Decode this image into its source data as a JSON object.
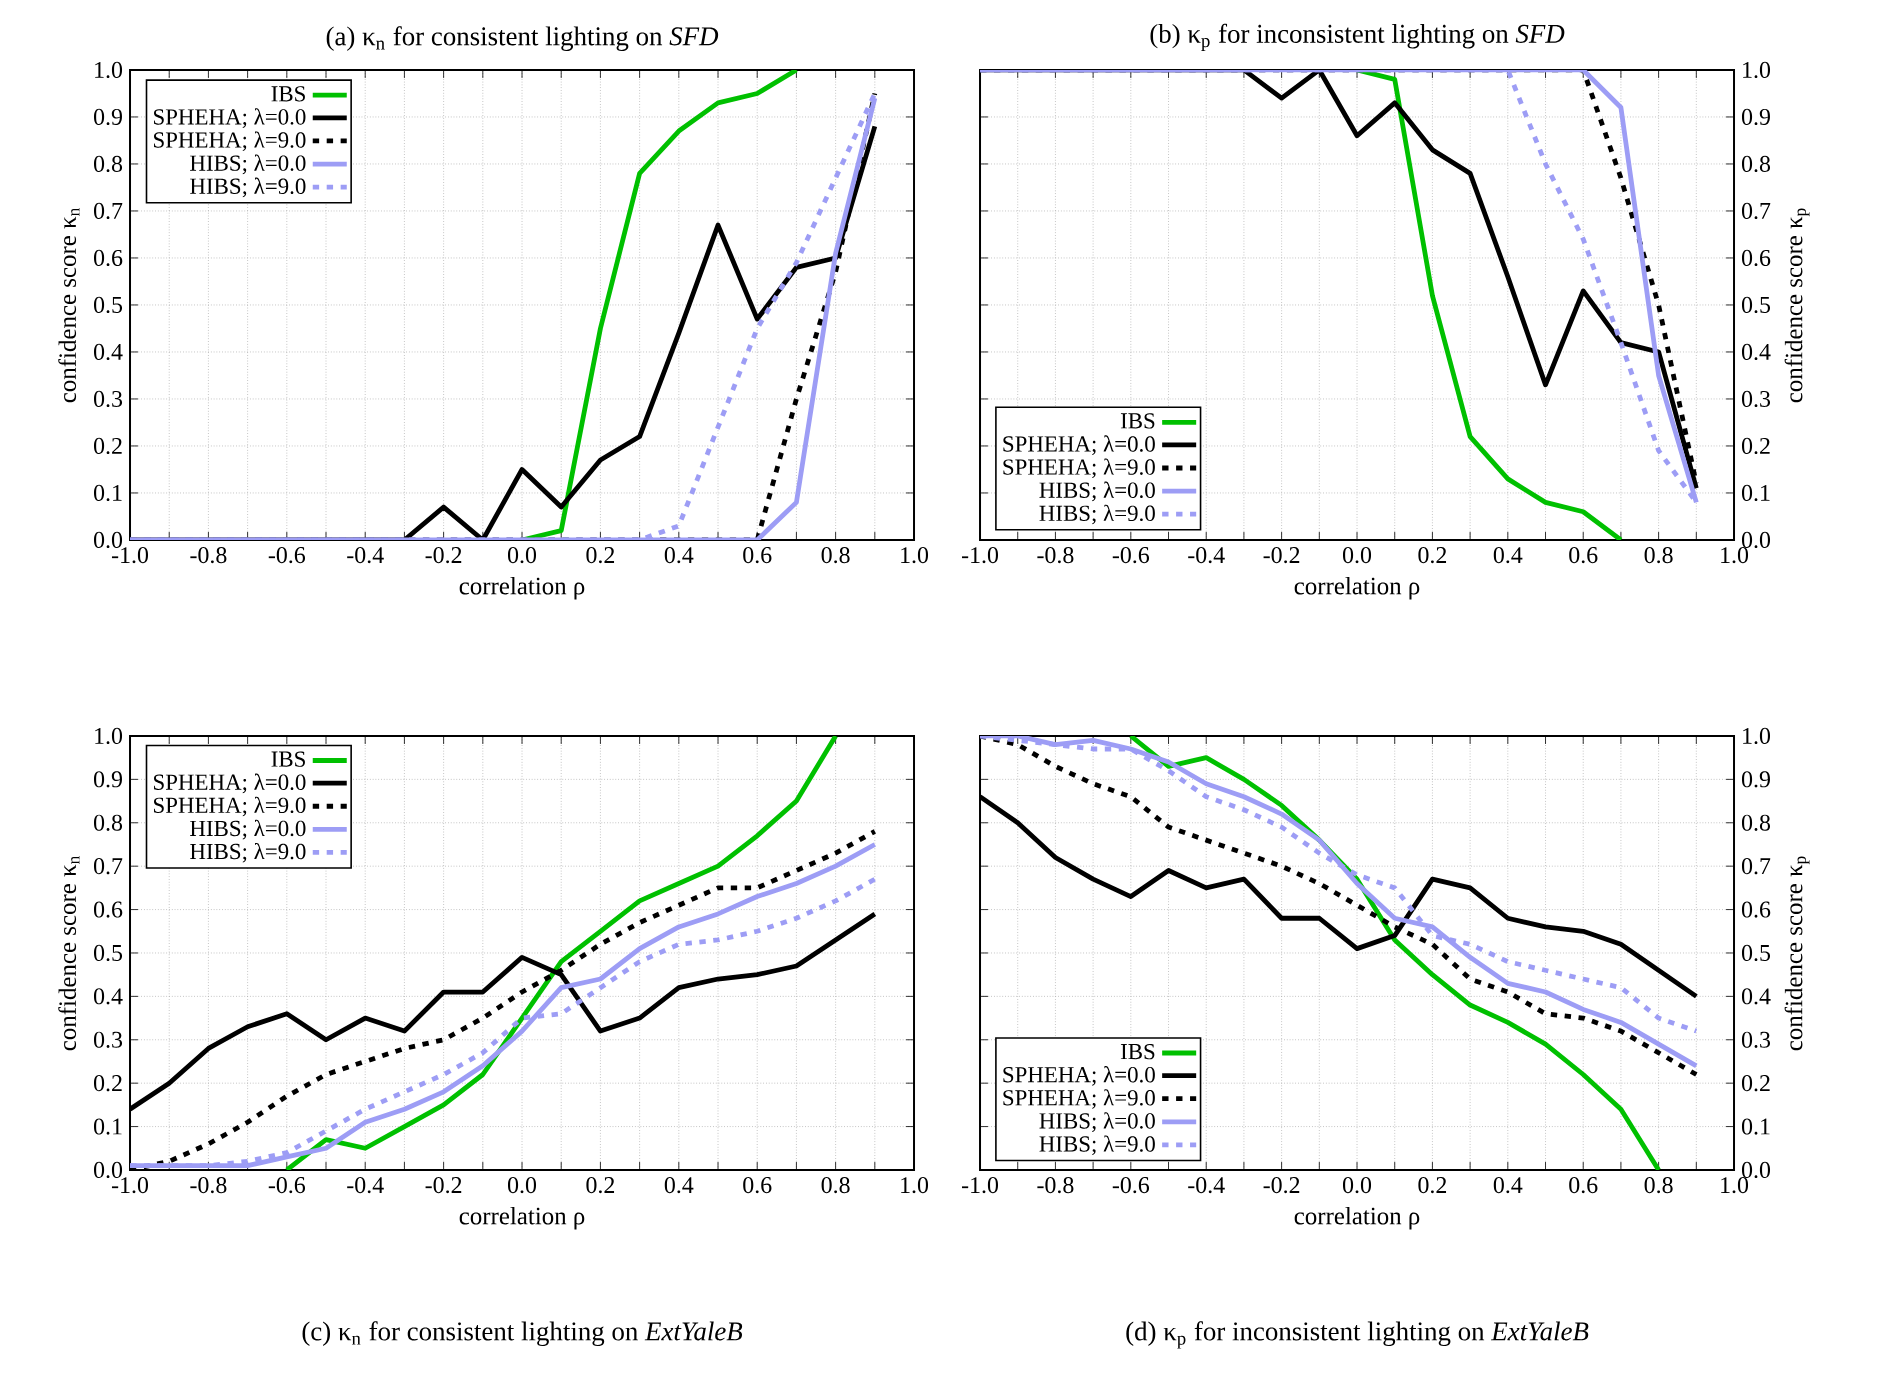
{
  "chart_data": [
    {
      "type": "line",
      "title": "(a) κ$_{n}$ for consistent lighting on *SFD*",
      "xlabel": "correlation ρ",
      "ylabel": "confidence score κ$_{n}$",
      "grid": true,
      "legend": "top left",
      "x": [
        -1.0,
        -0.9,
        -0.8,
        -0.7,
        -0.6,
        -0.5,
        -0.4,
        -0.3,
        -0.2,
        -0.1,
        0.0,
        0.1,
        0.2,
        0.3,
        0.4,
        0.5,
        0.6,
        0.7,
        0.8,
        0.9
      ],
      "xlim": [
        -1.0,
        1.0
      ],
      "ylim": [
        0.0,
        1.0
      ],
      "xticks": [
        {
          "value": -1.0,
          "label": "-1.0"
        },
        {
          "value": -0.9,
          "label": null
        },
        {
          "value": -0.8,
          "label": "-0.8"
        },
        {
          "value": -0.7,
          "label": null
        },
        {
          "value": -0.6,
          "label": "-0.6"
        },
        {
          "value": -0.5,
          "label": null
        },
        {
          "value": -0.4,
          "label": "-0.4"
        },
        {
          "value": -0.3,
          "label": null
        },
        {
          "value": -0.2,
          "label": "-0.2"
        },
        {
          "value": -0.1,
          "label": null
        },
        {
          "value": 0.0,
          "label": "0.0"
        },
        {
          "value": 0.1,
          "label": null
        },
        {
          "value": 0.2,
          "label": "0.2"
        },
        {
          "value": 0.3,
          "label": null
        },
        {
          "value": 0.4,
          "label": "0.4"
        },
        {
          "value": 0.5,
          "label": null
        },
        {
          "value": 0.6,
          "label": "0.6"
        },
        {
          "value": 0.7,
          "label": null
        },
        {
          "value": 0.8,
          "label": "0.8"
        },
        {
          "value": 0.9,
          "label": null
        },
        {
          "value": 1.0,
          "label": "1.0"
        }
      ],
      "yticks": [
        {
          "value": 0.0,
          "label": "0.0"
        },
        {
          "value": 0.1,
          "label": "0.1"
        },
        {
          "value": 0.2,
          "label": "0.2"
        },
        {
          "value": 0.3,
          "label": "0.3"
        },
        {
          "value": 0.4,
          "label": "0.4"
        },
        {
          "value": 0.5,
          "label": "0.5"
        },
        {
          "value": 0.6,
          "label": "0.6"
        },
        {
          "value": 0.7,
          "label": "0.7"
        },
        {
          "value": 0.8,
          "label": "0.8"
        },
        {
          "value": 0.9,
          "label": "0.9"
        },
        {
          "value": 1.0,
          "label": "1.0"
        }
      ],
      "series": [
        {
          "name": "IBS",
          "color": "#00c000",
          "line_style": "solid",
          "values": [
            null,
            null,
            null,
            null,
            null,
            null,
            null,
            null,
            null,
            null,
            0,
            0.02,
            0.45,
            0.78,
            0.87,
            0.93,
            0.95,
            1.0,
            null,
            null
          ]
        },
        {
          "name": "SPHEHA; λ=0.0",
          "color": "#000000",
          "line_style": "solid",
          "values": [
            0,
            0,
            0,
            0,
            0,
            0,
            0,
            0,
            0.07,
            0,
            0.15,
            0.07,
            0.17,
            0.22,
            0.44,
            0.67,
            0.47,
            0.58,
            0.6,
            0.88
          ]
        },
        {
          "name": "SPHEHA; λ=9.0",
          "color": "#000000",
          "line_style": "dotted",
          "values": [
            0,
            0,
            0,
            0,
            0,
            0,
            0,
            0,
            0,
            0,
            0,
            0,
            0,
            0,
            0,
            0,
            0,
            0.3,
            0.57,
            0.95
          ]
        },
        {
          "name": "HIBS; λ=0.0",
          "color": "#9d9df5",
          "line_style": "solid",
          "values": [
            0,
            0,
            0,
            0,
            0,
            0,
            0,
            0,
            0,
            0,
            0,
            0,
            0,
            0,
            0,
            0,
            0,
            0.08,
            0.61,
            0.94
          ]
        },
        {
          "name": "HIBS; λ=9.0",
          "color": "#9d9df5",
          "line_style": "dotted",
          "values": [
            0,
            0,
            0,
            0,
            0,
            0,
            0,
            0,
            0,
            0,
            0,
            0,
            0,
            0,
            0.03,
            0.24,
            0.45,
            0.59,
            0.77,
            0.95
          ]
        }
      ]
    },
    {
      "type": "line",
      "title": "(b) κ$_{p}$ for inconsistent lighting on *SFD*",
      "xlabel": "correlation ρ",
      "ylabel": "confidence score κ$_{p}$",
      "grid": true,
      "legend": "bottom left",
      "x": [
        -1.0,
        -0.9,
        -0.8,
        -0.7,
        -0.6,
        -0.5,
        -0.4,
        -0.3,
        -0.2,
        -0.1,
        0.0,
        0.1,
        0.2,
        0.3,
        0.4,
        0.5,
        0.6,
        0.7,
        0.8,
        0.9
      ],
      "xlim": [
        -1.0,
        1.0
      ],
      "ylim": [
        0.0,
        1.0
      ],
      "xticks": [
        {
          "value": -1.0,
          "label": "-1.0"
        },
        {
          "value": -0.9,
          "label": null
        },
        {
          "value": -0.8,
          "label": "-0.8"
        },
        {
          "value": -0.7,
          "label": null
        },
        {
          "value": -0.6,
          "label": "-0.6"
        },
        {
          "value": -0.5,
          "label": null
        },
        {
          "value": -0.4,
          "label": "-0.4"
        },
        {
          "value": -0.3,
          "label": null
        },
        {
          "value": -0.2,
          "label": "-0.2"
        },
        {
          "value": -0.1,
          "label": null
        },
        {
          "value": 0.0,
          "label": "0.0"
        },
        {
          "value": 0.1,
          "label": null
        },
        {
          "value": 0.2,
          "label": "0.2"
        },
        {
          "value": 0.3,
          "label": null
        },
        {
          "value": 0.4,
          "label": "0.4"
        },
        {
          "value": 0.5,
          "label": null
        },
        {
          "value": 0.6,
          "label": "0.6"
        },
        {
          "value": 0.7,
          "label": null
        },
        {
          "value": 0.8,
          "label": "0.8"
        },
        {
          "value": 0.9,
          "label": null
        },
        {
          "value": 1.0,
          "label": "1.0"
        }
      ],
      "yticks": [
        {
          "value": 0.0,
          "label": "0.0"
        },
        {
          "value": 0.1,
          "label": "0.1"
        },
        {
          "value": 0.2,
          "label": "0.2"
        },
        {
          "value": 0.3,
          "label": "0.3"
        },
        {
          "value": 0.4,
          "label": "0.4"
        },
        {
          "value": 0.5,
          "label": "0.5"
        },
        {
          "value": 0.6,
          "label": "0.6"
        },
        {
          "value": 0.7,
          "label": "0.7"
        },
        {
          "value": 0.8,
          "label": "0.8"
        },
        {
          "value": 0.9,
          "label": "0.9"
        },
        {
          "value": 1.0,
          "label": "1.0"
        }
      ],
      "series": [
        {
          "name": "IBS",
          "color": "#00c000",
          "line_style": "solid",
          "values": [
            null,
            null,
            null,
            null,
            null,
            null,
            null,
            null,
            null,
            null,
            1,
            0.98,
            0.52,
            0.22,
            0.13,
            0.08,
            0.06,
            0,
            null,
            null
          ]
        },
        {
          "name": "SPHEHA; λ=0.0",
          "color": "#000000",
          "line_style": "solid",
          "values": [
            1,
            1,
            1,
            1,
            1,
            1,
            1,
            1,
            0.94,
            1,
            0.86,
            0.93,
            0.83,
            0.78,
            0.56,
            0.33,
            0.53,
            0.42,
            0.4,
            0.11
          ]
        },
        {
          "name": "SPHEHA; λ=9.0",
          "color": "#000000",
          "line_style": "dotted",
          "values": [
            1,
            1,
            1,
            1,
            1,
            1,
            1,
            1,
            1,
            1,
            1,
            1,
            1,
            1,
            1,
            1,
            1,
            0.77,
            0.5,
            0.12
          ]
        },
        {
          "name": "HIBS; λ=0.0",
          "color": "#9d9df5",
          "line_style": "solid",
          "values": [
            1,
            1,
            1,
            1,
            1,
            1,
            1,
            1,
            1,
            1,
            1,
            1,
            1,
            1,
            1,
            1,
            1,
            0.92,
            0.35,
            0.08
          ]
        },
        {
          "name": "HIBS; λ=9.0",
          "color": "#9d9df5",
          "line_style": "dotted",
          "values": [
            1,
            1,
            1,
            1,
            1,
            1,
            1,
            1,
            1,
            1,
            1,
            1,
            1,
            1,
            1,
            0.8,
            0.64,
            0.42,
            0.19,
            0.08
          ]
        }
      ]
    },
    {
      "type": "line",
      "title": "(c) κ$_{n}$ for consistent lighting on *ExtYaleB*",
      "xlabel": "correlation ρ",
      "ylabel": "confidence score κ$_{n}$",
      "grid": true,
      "legend": "top left",
      "x": [
        -1.0,
        -0.9,
        -0.8,
        -0.7,
        -0.6,
        -0.5,
        -0.4,
        -0.3,
        -0.2,
        -0.1,
        0.0,
        0.1,
        0.2,
        0.3,
        0.4,
        0.5,
        0.6,
        0.7,
        0.8,
        0.9
      ],
      "xlim": [
        -1.0,
        1.0
      ],
      "ylim": [
        0.0,
        1.0
      ],
      "xticks": [
        {
          "value": -1.0,
          "label": "-1.0"
        },
        {
          "value": -0.9,
          "label": null
        },
        {
          "value": -0.8,
          "label": "-0.8"
        },
        {
          "value": -0.7,
          "label": null
        },
        {
          "value": -0.6,
          "label": "-0.6"
        },
        {
          "value": -0.5,
          "label": null
        },
        {
          "value": -0.4,
          "label": "-0.4"
        },
        {
          "value": -0.3,
          "label": null
        },
        {
          "value": -0.2,
          "label": "-0.2"
        },
        {
          "value": -0.1,
          "label": null
        },
        {
          "value": 0.0,
          "label": "0.0"
        },
        {
          "value": 0.1,
          "label": null
        },
        {
          "value": 0.2,
          "label": "0.2"
        },
        {
          "value": 0.3,
          "label": null
        },
        {
          "value": 0.4,
          "label": "0.4"
        },
        {
          "value": 0.5,
          "label": null
        },
        {
          "value": 0.6,
          "label": "0.6"
        },
        {
          "value": 0.7,
          "label": null
        },
        {
          "value": 0.8,
          "label": "0.8"
        },
        {
          "value": 0.9,
          "label": null
        },
        {
          "value": 1.0,
          "label": "1.0"
        }
      ],
      "yticks": [
        {
          "value": 0.0,
          "label": "0.0"
        },
        {
          "value": 0.1,
          "label": "0.1"
        },
        {
          "value": 0.2,
          "label": "0.2"
        },
        {
          "value": 0.3,
          "label": "0.3"
        },
        {
          "value": 0.4,
          "label": "0.4"
        },
        {
          "value": 0.5,
          "label": "0.5"
        },
        {
          "value": 0.6,
          "label": "0.6"
        },
        {
          "value": 0.7,
          "label": "0.7"
        },
        {
          "value": 0.8,
          "label": "0.8"
        },
        {
          "value": 0.9,
          "label": "0.9"
        },
        {
          "value": 1.0,
          "label": "1.0"
        }
      ],
      "series": [
        {
          "name": "IBS",
          "color": "#00c000",
          "line_style": "solid",
          "values": [
            null,
            null,
            null,
            null,
            0,
            0.07,
            0.05,
            0.1,
            0.15,
            0.22,
            0.35,
            0.48,
            0.55,
            0.62,
            0.66,
            0.7,
            0.77,
            0.85,
            1.0,
            null
          ]
        },
        {
          "name": "SPHEHA; λ=0.0",
          "color": "#000000",
          "line_style": "solid",
          "values": [
            0.14,
            0.2,
            0.28,
            0.33,
            0.36,
            0.3,
            0.35,
            0.32,
            0.41,
            0.41,
            0.49,
            0.45,
            0.32,
            0.35,
            0.42,
            0.44,
            0.45,
            0.47,
            0.53,
            0.59
          ]
        },
        {
          "name": "SPHEHA; λ=9.0",
          "color": "#000000",
          "line_style": "dotted",
          "values": [
            0,
            0.02,
            0.06,
            0.11,
            0.17,
            0.22,
            0.25,
            0.28,
            0.3,
            0.35,
            0.41,
            0.46,
            0.52,
            0.57,
            0.61,
            0.65,
            0.65,
            0.69,
            0.73,
            0.78
          ]
        },
        {
          "name": "HIBS; λ=0.0",
          "color": "#9d9df5",
          "line_style": "solid",
          "values": [
            0.01,
            0.01,
            0.01,
            0.01,
            0.03,
            0.05,
            0.11,
            0.14,
            0.18,
            0.24,
            0.32,
            0.42,
            0.44,
            0.51,
            0.56,
            0.59,
            0.63,
            0.66,
            0.7,
            0.75
          ]
        },
        {
          "name": "HIBS; λ=9.0",
          "color": "#9d9df5",
          "line_style": "dotted",
          "values": [
            0.01,
            0.01,
            0.01,
            0.02,
            0.04,
            0.09,
            0.14,
            0.18,
            0.22,
            0.27,
            0.35,
            0.36,
            0.42,
            0.48,
            0.52,
            0.53,
            0.55,
            0.58,
            0.62,
            0.67
          ]
        }
      ]
    },
    {
      "type": "line",
      "title": "(d) κ$_{p}$ for inconsistent lighting on *ExtYaleB*",
      "xlabel": "correlation ρ",
      "ylabel": "confidence score κ$_{p}$",
      "grid": true,
      "legend": "bottom left",
      "x": [
        -1.0,
        -0.9,
        -0.8,
        -0.7,
        -0.6,
        -0.5,
        -0.4,
        -0.3,
        -0.2,
        -0.1,
        0.0,
        0.1,
        0.2,
        0.3,
        0.4,
        0.5,
        0.6,
        0.7,
        0.8,
        0.9
      ],
      "xlim": [
        -1.0,
        1.0
      ],
      "ylim": [
        0.0,
        1.0
      ],
      "xticks": [
        {
          "value": -1.0,
          "label": "-1.0"
        },
        {
          "value": -0.9,
          "label": null
        },
        {
          "value": -0.8,
          "label": "-0.8"
        },
        {
          "value": -0.7,
          "label": null
        },
        {
          "value": -0.6,
          "label": "-0.6"
        },
        {
          "value": -0.5,
          "label": null
        },
        {
          "value": -0.4,
          "label": "-0.4"
        },
        {
          "value": -0.3,
          "label": null
        },
        {
          "value": -0.2,
          "label": "-0.2"
        },
        {
          "value": -0.1,
          "label": null
        },
        {
          "value": 0.0,
          "label": "0.0"
        },
        {
          "value": 0.1,
          "label": null
        },
        {
          "value": 0.2,
          "label": "0.2"
        },
        {
          "value": 0.3,
          "label": null
        },
        {
          "value": 0.4,
          "label": "0.4"
        },
        {
          "value": 0.5,
          "label": null
        },
        {
          "value": 0.6,
          "label": "0.6"
        },
        {
          "value": 0.7,
          "label": null
        },
        {
          "value": 0.8,
          "label": "0.8"
        },
        {
          "value": 0.9,
          "label": null
        },
        {
          "value": 1.0,
          "label": "1.0"
        }
      ],
      "yticks": [
        {
          "value": 0.0,
          "label": "0.0"
        },
        {
          "value": 0.1,
          "label": "0.1"
        },
        {
          "value": 0.2,
          "label": "0.2"
        },
        {
          "value": 0.3,
          "label": "0.3"
        },
        {
          "value": 0.4,
          "label": "0.4"
        },
        {
          "value": 0.5,
          "label": "0.5"
        },
        {
          "value": 0.6,
          "label": "0.6"
        },
        {
          "value": 0.7,
          "label": "0.7"
        },
        {
          "value": 0.8,
          "label": "0.8"
        },
        {
          "value": 0.9,
          "label": "0.9"
        },
        {
          "value": 1.0,
          "label": "1.0"
        }
      ],
      "series": [
        {
          "name": "IBS",
          "color": "#00c000",
          "line_style": "solid",
          "values": [
            null,
            null,
            null,
            null,
            1.0,
            0.93,
            0.95,
            0.9,
            0.84,
            0.76,
            0.67,
            0.53,
            0.45,
            0.38,
            0.34,
            0.29,
            0.22,
            0.14,
            0.0,
            null
          ]
        },
        {
          "name": "SPHEHA; λ=0.0",
          "color": "#000000",
          "line_style": "solid",
          "values": [
            0.86,
            0.8,
            0.72,
            0.67,
            0.63,
            0.69,
            0.65,
            0.67,
            0.58,
            0.58,
            0.51,
            0.54,
            0.67,
            0.65,
            0.58,
            0.56,
            0.55,
            0.52,
            0.46,
            0.4
          ]
        },
        {
          "name": "SPHEHA; λ=9.0",
          "color": "#000000",
          "line_style": "dotted",
          "values": [
            1.0,
            0.98,
            0.93,
            0.89,
            0.86,
            0.79,
            0.76,
            0.73,
            0.7,
            0.66,
            0.61,
            0.56,
            0.52,
            0.44,
            0.41,
            0.36,
            0.35,
            0.32,
            0.27,
            0.22
          ]
        },
        {
          "name": "HIBS; λ=0.0",
          "color": "#9d9df5",
          "line_style": "solid",
          "values": [
            1.0,
            1.0,
            0.98,
            0.99,
            0.97,
            0.94,
            0.89,
            0.86,
            0.82,
            0.76,
            0.66,
            0.58,
            0.56,
            0.49,
            0.43,
            0.41,
            0.37,
            0.34,
            0.29,
            0.24
          ]
        },
        {
          "name": "HIBS; λ=9.0",
          "color": "#9d9df5",
          "line_style": "dotted",
          "values": [
            1.0,
            0.99,
            0.98,
            0.97,
            0.97,
            0.92,
            0.86,
            0.83,
            0.79,
            0.73,
            0.68,
            0.65,
            0.54,
            0.52,
            0.48,
            0.46,
            0.44,
            0.42,
            0.35,
            0.32
          ]
        }
      ]
    }
  ]
}
